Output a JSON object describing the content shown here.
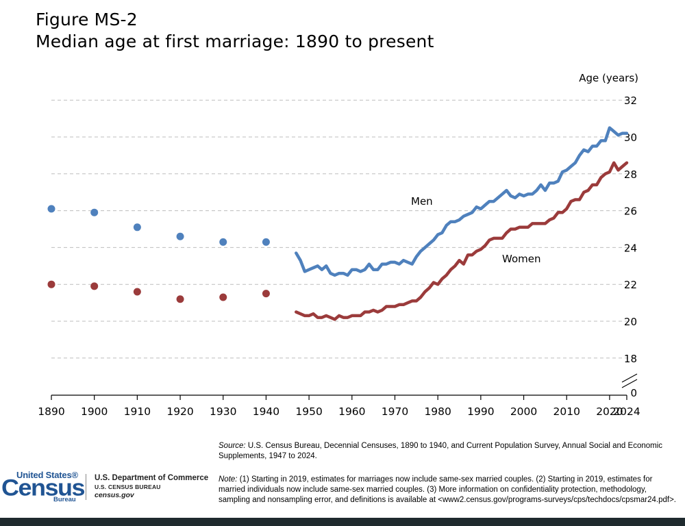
{
  "header": {
    "figure_label": "Figure MS-2",
    "subtitle": "Median age at first marriage: 1890 to present"
  },
  "chart_data": {
    "type": "line",
    "title": "Median age at first marriage: 1890 to present",
    "ylabel": "Age (years)",
    "xlabel": "",
    "ylim": [
      18,
      32
    ],
    "y_break": true,
    "y_ticks": [
      "32",
      "30",
      "28",
      "26",
      "24",
      "22",
      "20",
      "18",
      "0"
    ],
    "x_ticks": [
      "1890",
      "1900",
      "1910",
      "1920",
      "1930",
      "1940",
      "1950",
      "1960",
      "1970",
      "1980",
      "1990",
      "2000",
      "2010",
      "2020",
      "2024"
    ],
    "grid": true,
    "colors": {
      "men": "#4f81bd",
      "women": "#9b3b3b",
      "grid": "#bdbdbd"
    },
    "series_labels": {
      "men": "Men",
      "women": "Women"
    },
    "decennial": {
      "years": [
        1890,
        1900,
        1910,
        1920,
        1930,
        1940
      ],
      "men": [
        26.1,
        25.9,
        25.1,
        24.6,
        24.3,
        24.3
      ],
      "women": [
        22.0,
        21.9,
        21.6,
        21.2,
        21.3,
        21.5
      ]
    },
    "cps": {
      "years": [
        1947,
        1948,
        1949,
        1950,
        1951,
        1952,
        1953,
        1954,
        1955,
        1956,
        1957,
        1958,
        1959,
        1960,
        1961,
        1962,
        1963,
        1964,
        1965,
        1966,
        1967,
        1968,
        1969,
        1970,
        1971,
        1972,
        1973,
        1974,
        1975,
        1976,
        1977,
        1978,
        1979,
        1980,
        1981,
        1982,
        1983,
        1984,
        1985,
        1986,
        1987,
        1988,
        1989,
        1990,
        1991,
        1992,
        1993,
        1994,
        1995,
        1996,
        1997,
        1998,
        1999,
        2000,
        2001,
        2002,
        2003,
        2004,
        2005,
        2006,
        2007,
        2008,
        2009,
        2010,
        2011,
        2012,
        2013,
        2014,
        2015,
        2016,
        2017,
        2018,
        2019,
        2020,
        2021,
        2022,
        2023,
        2024
      ],
      "men": [
        23.7,
        23.3,
        22.7,
        22.8,
        22.9,
        23.0,
        22.8,
        23.0,
        22.6,
        22.5,
        22.6,
        22.6,
        22.5,
        22.8,
        22.8,
        22.7,
        22.8,
        23.1,
        22.8,
        22.8,
        23.1,
        23.1,
        23.2,
        23.2,
        23.1,
        23.3,
        23.2,
        23.1,
        23.5,
        23.8,
        24.0,
        24.2,
        24.4,
        24.7,
        24.8,
        25.2,
        25.4,
        25.4,
        25.5,
        25.7,
        25.8,
        25.9,
        26.2,
        26.1,
        26.3,
        26.5,
        26.5,
        26.7,
        26.9,
        27.1,
        26.8,
        26.7,
        26.9,
        26.8,
        26.9,
        26.9,
        27.1,
        27.4,
        27.1,
        27.5,
        27.5,
        27.6,
        28.1,
        28.2,
        28.4,
        28.6,
        29.0,
        29.3,
        29.2,
        29.5,
        29.5,
        29.8,
        29.8,
        30.5,
        30.3,
        30.1,
        30.2,
        30.2
      ],
      "women": [
        20.5,
        20.4,
        20.3,
        20.3,
        20.4,
        20.2,
        20.2,
        20.3,
        20.2,
        20.1,
        20.3,
        20.2,
        20.2,
        20.3,
        20.3,
        20.3,
        20.5,
        20.5,
        20.6,
        20.5,
        20.6,
        20.8,
        20.8,
        20.8,
        20.9,
        20.9,
        21.0,
        21.1,
        21.1,
        21.3,
        21.6,
        21.8,
        22.1,
        22.0,
        22.3,
        22.5,
        22.8,
        23.0,
        23.3,
        23.1,
        23.6,
        23.6,
        23.8,
        23.9,
        24.1,
        24.4,
        24.5,
        24.5,
        24.5,
        24.8,
        25.0,
        25.0,
        25.1,
        25.1,
        25.1,
        25.3,
        25.3,
        25.3,
        25.3,
        25.5,
        25.6,
        25.9,
        25.9,
        26.1,
        26.5,
        26.6,
        26.6,
        27.0,
        27.1,
        27.4,
        27.4,
        27.8,
        28.0,
        28.1,
        28.6,
        28.2,
        28.4,
        28.6
      ]
    }
  },
  "footer": {
    "source_label": "Source:",
    "source_text": " U.S. Census Bureau, Decennial Censuses, 1890 to 1940, and Current Population Survey, Annual Social and Economic Supplements, 1947 to 2024.",
    "note_label": "Note:",
    "note_text": " (1) Starting in 2019, estimates for marriages now include same-sex married couples. (2) Starting in 2019, estimates for married individuals now include same-sex married couples. (3) More information on confidentiality protection, methodology, sampling and nonsampling error, and definitions is available at <www2.census.gov/programs-surveys/cps/techdocs/cpsmar24.pdf>.",
    "logo_united_states": "United States®",
    "logo_census": "Census",
    "logo_bureau": "Bureau",
    "dept_name": "U.S. Department of Commerce",
    "dept_sub": "U.S. CENSUS BUREAU",
    "dept_url": "census.gov"
  }
}
